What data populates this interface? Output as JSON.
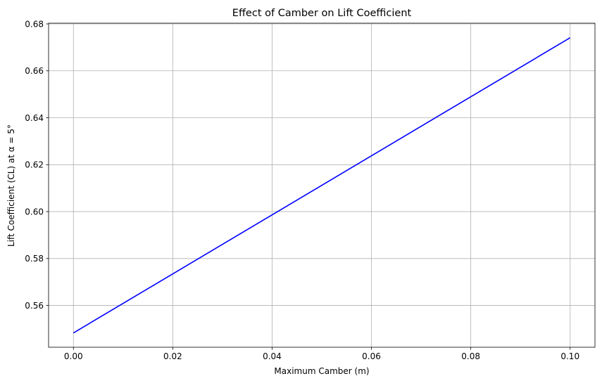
{
  "chart_data": {
    "type": "line",
    "title": "Effect of Camber on Lift Coefficient",
    "xlabel": "Maximum Camber (m)",
    "ylabel": "Lift Coefficient (CL) at α = 5°",
    "xlim": [
      -0.005,
      0.105
    ],
    "ylim": [
      0.5422,
      0.6803
    ],
    "xticks": [
      0.0,
      0.02,
      0.04,
      0.06,
      0.08,
      0.1
    ],
    "xtick_labels": [
      "0.00",
      "0.02",
      "0.04",
      "0.06",
      "0.08",
      "0.10"
    ],
    "yticks": [
      0.56,
      0.58,
      0.6,
      0.62,
      0.64,
      0.66,
      0.68
    ],
    "ytick_labels": [
      "0.56",
      "0.58",
      "0.60",
      "0.62",
      "0.64",
      "0.66",
      "0.68"
    ],
    "grid": true,
    "series": [
      {
        "color": "#0000ff",
        "x": [
          0.0,
          0.1
        ],
        "y": [
          0.5483,
          0.6741
        ]
      }
    ]
  }
}
